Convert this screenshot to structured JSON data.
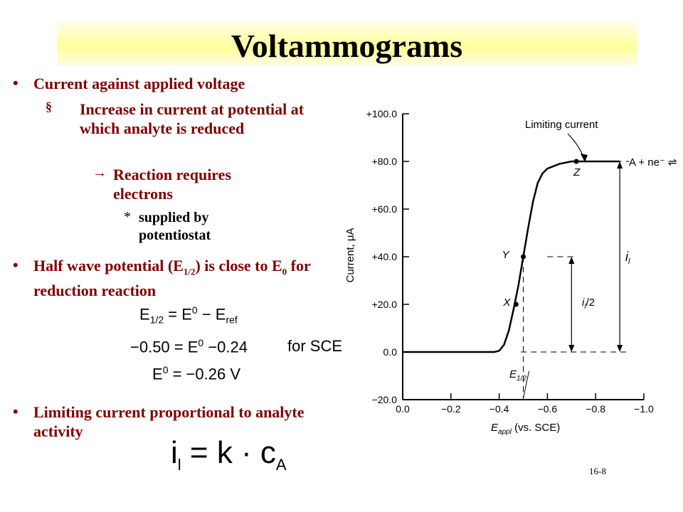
{
  "slide": {
    "title": "Voltammograms",
    "slide_number": "16-8",
    "bullets": [
      {
        "marker": "•",
        "text": "Current against applied voltage"
      },
      {
        "marker": "§",
        "text": "Increase in current at potential at which analyte is reduced"
      },
      {
        "marker": "→",
        "text": "Reaction requires electrons"
      },
      {
        "marker": "*",
        "text": "supplied by potentiostat"
      },
      {
        "marker": "•",
        "text_pre": "Half wave potential (E",
        "text_sub": "1/2",
        "text_post": ") is close to E",
        "text_sub2": "0",
        "text_post2": " for reduction reaction"
      },
      {
        "marker": "•",
        "text": "Limiting current proportional to analyte activity"
      }
    ],
    "equations": {
      "line1": {
        "lhs": "E",
        "lhs_sub": "1/2",
        "eq": " = E",
        "sup": "0",
        "rest": " − E",
        "rest_sub": "ref"
      },
      "line2": {
        "lhs": "−0.50 = E",
        "sup": "0",
        "rest": " −0.24",
        "note": "for SCE"
      },
      "line3": {
        "lhs": "E",
        "sup": "0",
        "rest": " = −0.26 V"
      },
      "limiting": {
        "lhs": "i",
        "lhs_sub": "l",
        "rest": " = k · c",
        "rest_sub": "A"
      }
    }
  },
  "chart_data": {
    "type": "line",
    "xlabel": "E",
    "xlabel_sub": "appl",
    "xlabel_rest": " (vs. SCE)",
    "ylabel": "Current, μA",
    "xlim": [
      0.0,
      -1.0
    ],
    "ylim": [
      -20.0,
      100.0
    ],
    "x_ticks": [
      "0.0",
      "−0.2",
      "−0.4",
      "−0.6",
      "−0.8",
      "−1.0"
    ],
    "x_tick_values": [
      0.0,
      -0.2,
      -0.4,
      -0.6,
      -0.8,
      -1.0
    ],
    "y_ticks": [
      "+100.0",
      "+80.0",
      "+60.0",
      "+40.0",
      "+20.0",
      "0.0",
      "−20.0"
    ],
    "y_tick_values": [
      100,
      80,
      60,
      40,
      20,
      0,
      -20
    ],
    "curve": {
      "x": [
        0.0,
        -0.1,
        -0.2,
        -0.3,
        -0.38,
        -0.4,
        -0.42,
        -0.44,
        -0.46,
        -0.48,
        -0.5,
        -0.52,
        -0.54,
        -0.56,
        -0.58,
        -0.6,
        -0.65,
        -0.7,
        -0.8,
        -0.9
      ],
      "y": [
        0,
        0,
        0,
        0,
        0,
        0.5,
        3,
        9,
        18,
        28,
        40,
        52,
        63,
        71,
        75,
        77,
        79,
        80,
        80,
        80
      ]
    },
    "points": [
      {
        "label": "X",
        "x": -0.47,
        "y": 20
      },
      {
        "label": "Y",
        "x": -0.5,
        "y": 40
      },
      {
        "label": "Z",
        "x": -0.72,
        "y": 80
      }
    ],
    "half_wave": {
      "label": "E",
      "label_sub": "1/2",
      "x": -0.5
    },
    "annotations": {
      "limiting_current": "Limiting current",
      "reaction": "A + ne⁻ ⇌",
      "il": "i",
      "il_sub": "l",
      "il_half": "i",
      "il_half_sub": "l",
      "il_half_rest": "/2"
    }
  }
}
